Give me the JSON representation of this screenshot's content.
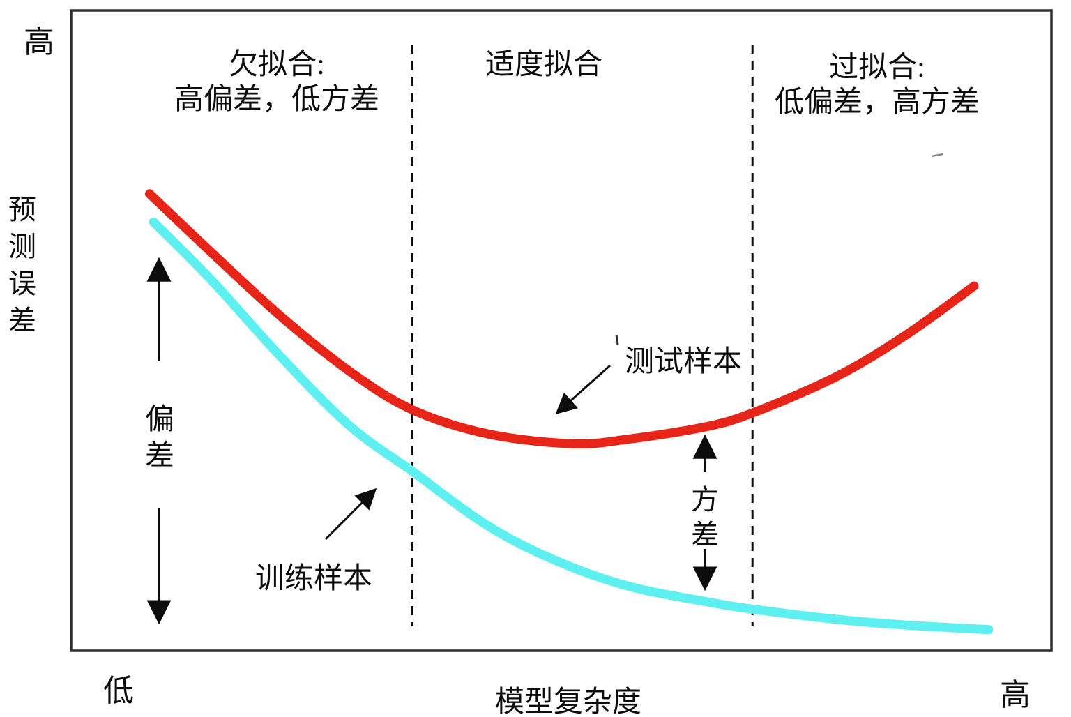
{
  "colors": {
    "test_curve": "#e62417",
    "train_curve": "#5eeff0",
    "plot_border": "#2e2e2e",
    "annotation": "#0c0c0c"
  },
  "chart_data": {
    "type": "line",
    "title": "",
    "xlabel": "模型复杂度",
    "ylabel": "预测误差",
    "axis_end_labels": {
      "y_top": "高",
      "x_left": "低",
      "x_right": "高"
    },
    "x_range": [
      0,
      100
    ],
    "y_range": [
      0,
      100
    ],
    "grid": false,
    "region_boundaries_x": [
      34.8,
      69.5
    ],
    "regions": [
      {
        "line1": "欠拟合:",
        "line2": "高偏差，低方差"
      },
      {
        "line1": "适度拟合",
        "line2": ""
      },
      {
        "line1": "过拟合:",
        "line2": "低偏差，高方差"
      }
    ],
    "series": [
      {
        "name": "测试样本",
        "color": "#e62417",
        "points": [
          [
            8.0,
            71.3
          ],
          [
            14.2,
            62.3
          ],
          [
            21.3,
            52.3
          ],
          [
            28.4,
            43.6
          ],
          [
            34.8,
            37.6
          ],
          [
            42.6,
            33.8
          ],
          [
            51.1,
            32.3
          ],
          [
            56.8,
            33.0
          ],
          [
            64.6,
            34.9
          ],
          [
            69.5,
            37.1
          ],
          [
            78.1,
            42.8
          ],
          [
            85.2,
            49.3
          ],
          [
            92.1,
            56.9
          ]
        ]
      },
      {
        "name": "训练样本",
        "color": "#5eeff0",
        "points": [
          [
            8.4,
            66.9
          ],
          [
            14.2,
            58.0
          ],
          [
            21.3,
            46.0
          ],
          [
            28.4,
            35.1
          ],
          [
            34.8,
            28.0
          ],
          [
            42.6,
            19.4
          ],
          [
            49.7,
            13.9
          ],
          [
            56.8,
            10.1
          ],
          [
            64.6,
            7.7
          ],
          [
            69.5,
            6.5
          ],
          [
            78.1,
            4.9
          ],
          [
            85.2,
            4.0
          ],
          [
            93.6,
            3.3
          ]
        ]
      }
    ],
    "annotations": [
      {
        "text": "测试样本",
        "target": "test curve",
        "arrow": "points down-left to red curve"
      },
      {
        "text": "训练样本",
        "target": "train curve",
        "arrow": "points up-right to cyan curve"
      },
      {
        "text": "偏差",
        "orientation": "vertical",
        "arrow": "split double-headed vertical arrow"
      },
      {
        "text": "方差",
        "orientation": "vertical",
        "arrow": "split double-headed vertical arrow"
      }
    ]
  }
}
